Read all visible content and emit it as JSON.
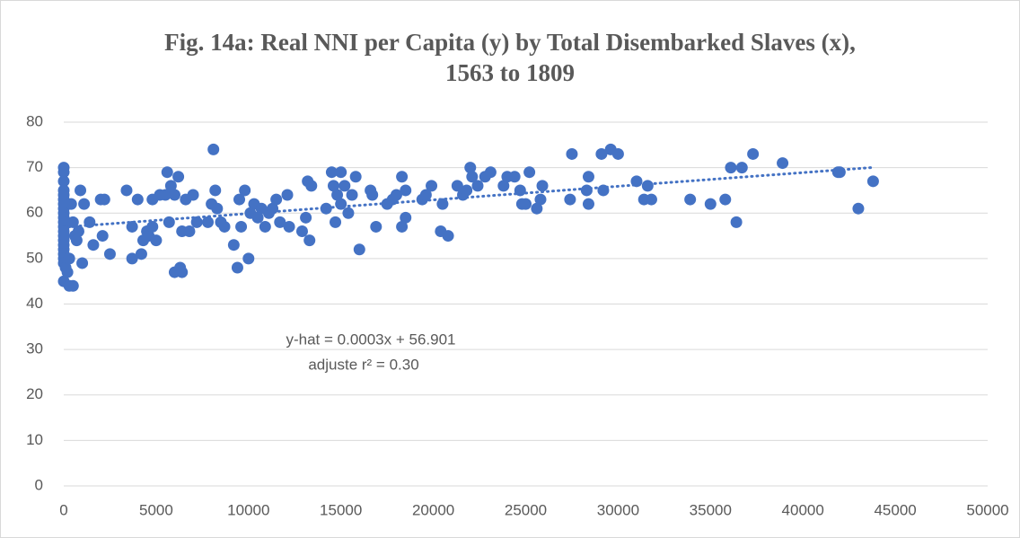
{
  "chart_data": {
    "type": "scatter",
    "title": "Fig. 14a: Real NNI per Capita (y) by Total Disembarked Slaves (x), 1563 to 1809",
    "annotations": [
      "y-hat = 0.0003x + 56.901",
      "adjuste r² = 0.30"
    ],
    "trendline": {
      "slope": 0.0003,
      "intercept": 56.901,
      "x": [
        0,
        43800
      ]
    },
    "color": "#4472c4",
    "xlim": [
      0,
      50000
    ],
    "xticks": [
      0,
      5000,
      10000,
      15000,
      20000,
      25000,
      30000,
      35000,
      40000,
      45000,
      50000
    ],
    "ylim": [
      0,
      80
    ],
    "yticks": [
      0,
      10,
      20,
      30,
      40,
      50,
      60,
      70,
      80
    ],
    "grid": true,
    "x": [
      0,
      0,
      0,
      0,
      0,
      0,
      0,
      0,
      0,
      0,
      0,
      0,
      0,
      0,
      0,
      0,
      0,
      0,
      0,
      0,
      100,
      0,
      300,
      500,
      200,
      300,
      400,
      500,
      600,
      700,
      800,
      900,
      1000,
      1100,
      1400,
      1600,
      2000,
      2100,
      2200,
      2500,
      3400,
      3700,
      3700,
      4000,
      4200,
      4300,
      4500,
      4600,
      4800,
      4800,
      5000,
      5200,
      5500,
      5600,
      5700,
      5800,
      6000,
      6000,
      6200,
      6300,
      6400,
      6400,
      6600,
      6800,
      7000,
      7200,
      7800,
      8000,
      8100,
      8200,
      8300,
      8500,
      8700,
      9200,
      9400,
      9500,
      9600,
      9800,
      10000,
      10100,
      10300,
      10500,
      10700,
      10900,
      11100,
      11300,
      11500,
      11700,
      12100,
      12200,
      12900,
      13100,
      13200,
      13300,
      13400,
      14200,
      14500,
      14600,
      14700,
      14800,
      15000,
      15000,
      15200,
      15400,
      15600,
      15800,
      16000,
      16600,
      16700,
      16900,
      17500,
      17800,
      18000,
      18300,
      18300,
      18500,
      18500,
      19400,
      19600,
      19900,
      20400,
      20500,
      20800,
      21300,
      21600,
      21800,
      22000,
      22100,
      22400,
      22800,
      23100,
      23800,
      24000,
      24400,
      24700,
      24800,
      25000,
      25200,
      25600,
      25800,
      25900,
      27400,
      27500,
      28300,
      28400,
      28400,
      29100,
      29200,
      29600,
      30000,
      31000,
      31400,
      31600,
      31800,
      33900,
      35000,
      35800,
      36100,
      36400,
      36700,
      37300,
      38900,
      41900,
      42000,
      43000,
      43800
    ],
    "y": [
      70,
      69,
      67,
      65,
      64,
      63,
      62,
      61,
      60,
      59,
      58,
      57,
      56,
      55,
      54,
      53,
      52,
      51,
      50,
      49,
      48,
      45,
      44,
      44,
      47,
      50,
      62,
      58,
      55,
      54,
      56,
      65,
      49,
      62,
      58,
      53,
      63,
      55,
      63,
      51,
      65,
      57,
      50,
      63,
      51,
      54,
      56,
      55,
      63,
      57,
      54,
      64,
      64,
      69,
      58,
      66,
      64,
      47,
      68,
      48,
      47,
      56,
      63,
      56,
      64,
      58,
      58,
      62,
      74,
      65,
      61,
      58,
      57,
      53,
      48,
      63,
      57,
      65,
      50,
      60,
      62,
      59,
      61,
      57,
      60,
      61,
      63,
      58,
      64,
      57,
      56,
      59,
      67,
      54,
      66,
      61,
      69,
      66,
      58,
      64,
      62,
      69,
      66,
      60,
      64,
      68,
      52,
      65,
      64,
      57,
      62,
      63,
      64,
      68,
      57,
      59,
      65,
      63,
      64,
      66,
      56,
      62,
      55,
      66,
      64,
      65,
      70,
      68,
      66,
      68,
      69,
      66,
      68,
      68,
      65,
      62,
      62,
      69,
      61,
      63,
      66,
      63,
      73,
      65,
      68,
      62,
      73,
      65,
      74,
      73,
      67,
      63,
      66,
      63,
      63,
      62,
      63,
      70,
      58,
      70,
      73,
      71,
      69,
      69,
      61,
      67
    ]
  }
}
